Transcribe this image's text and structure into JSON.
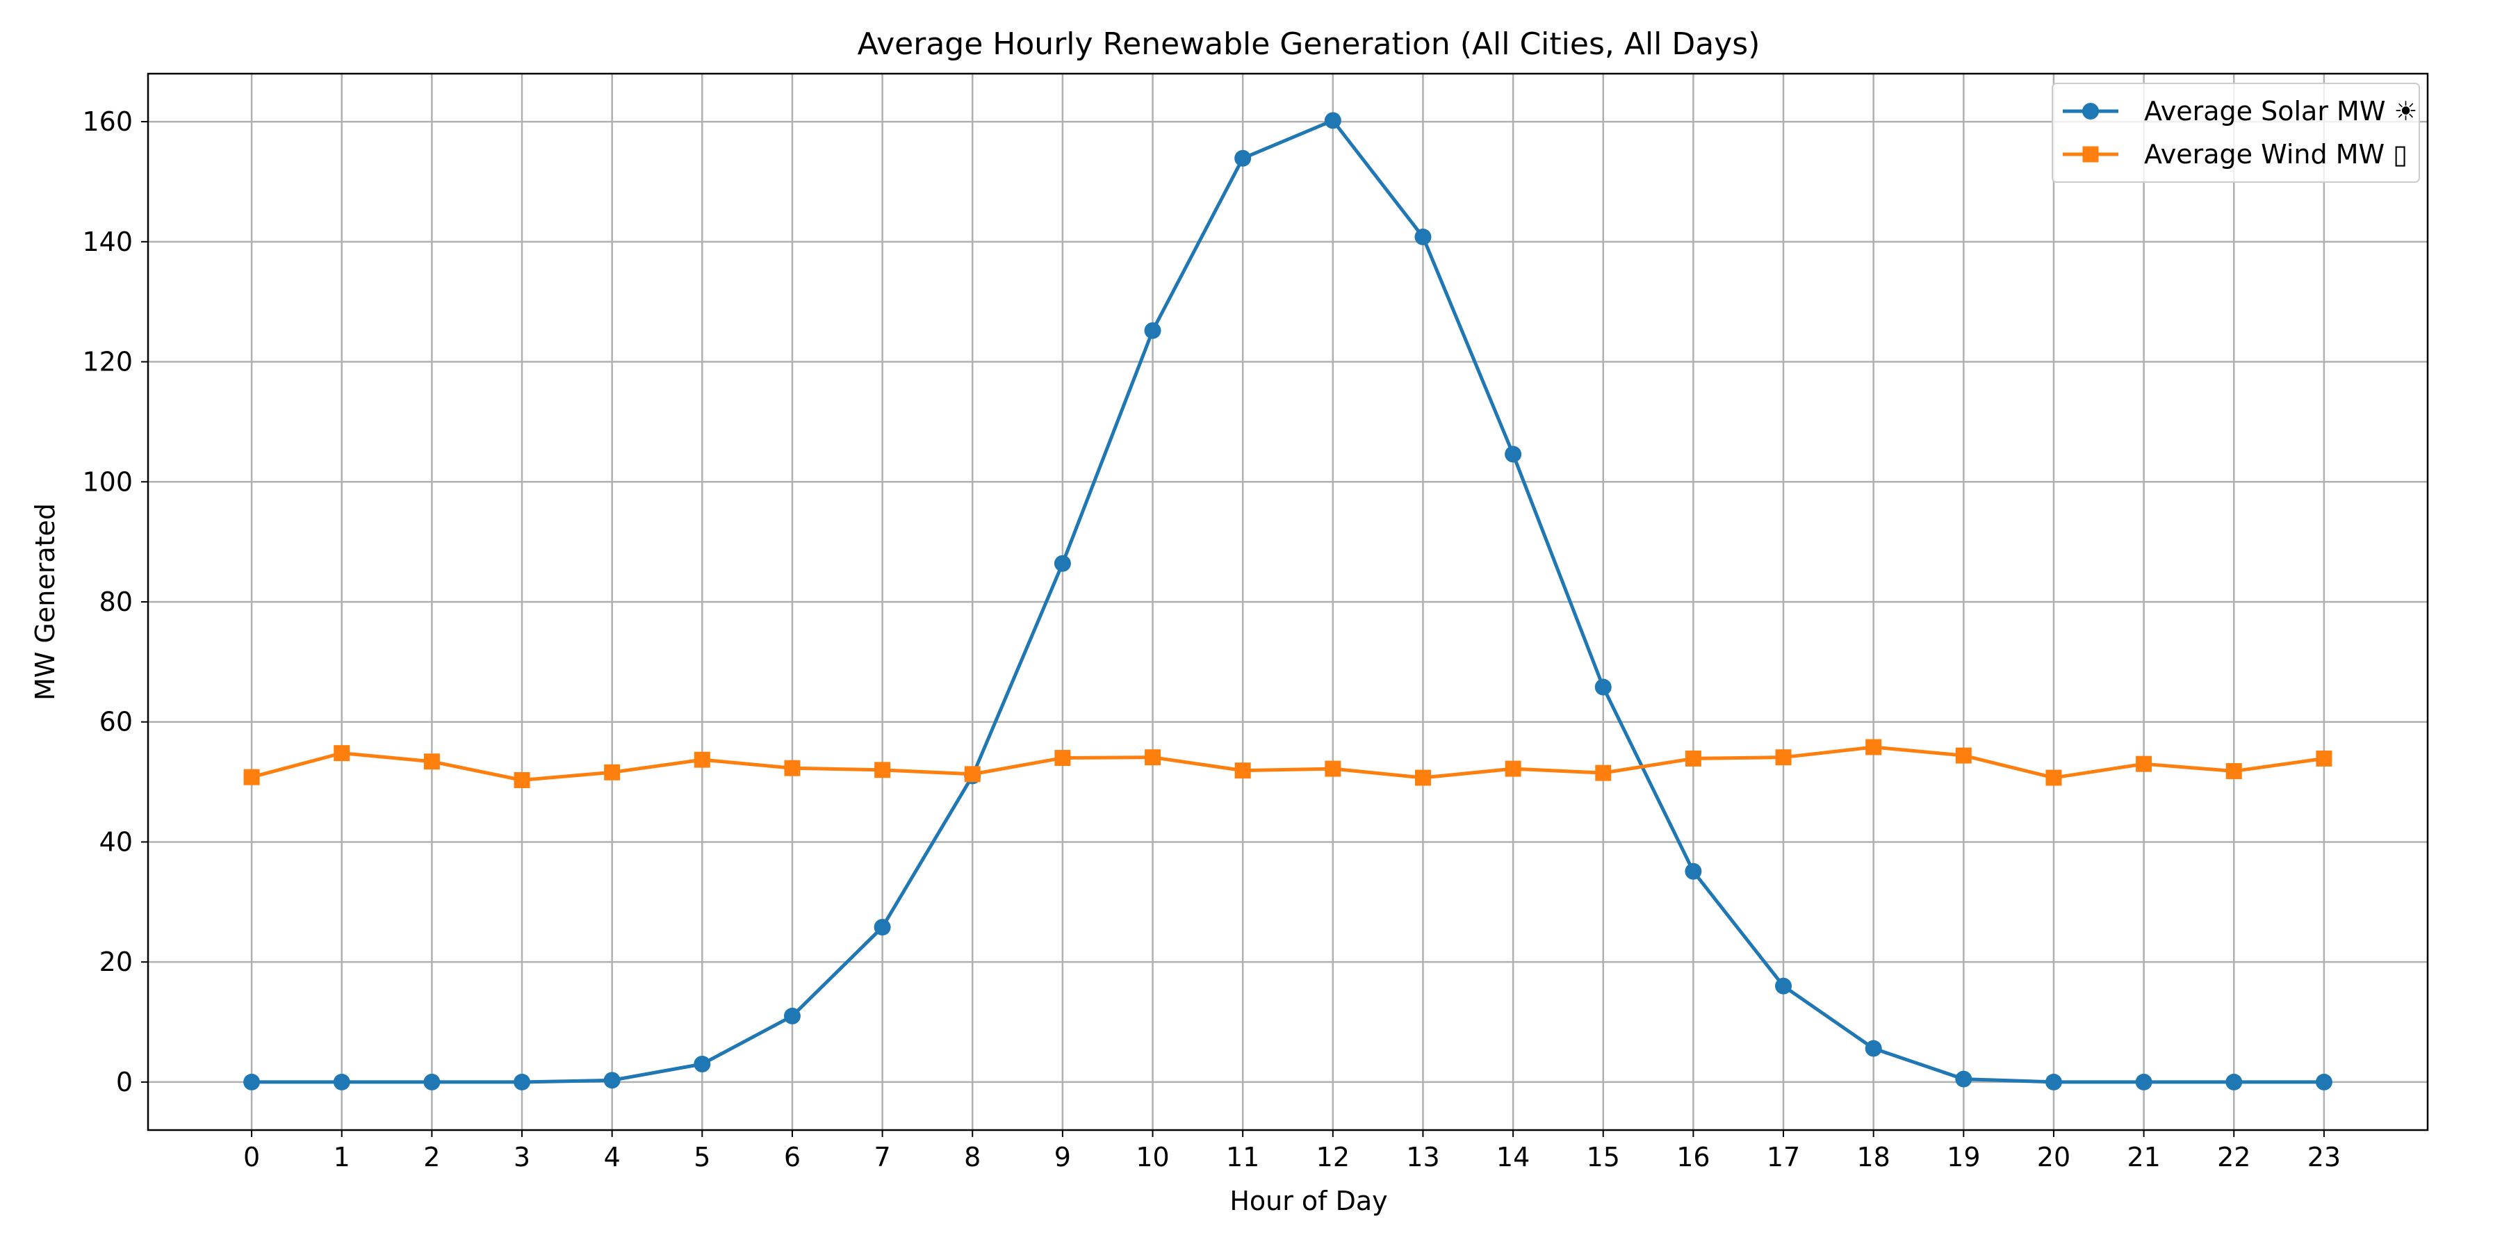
{
  "chart_data": {
    "type": "line",
    "title": "Average Hourly Renewable Generation (All Cities, All Days)",
    "xlabel": "Hour of Day",
    "ylabel": "MW Generated",
    "x": [
      0,
      1,
      2,
      3,
      4,
      5,
      6,
      7,
      8,
      9,
      10,
      11,
      12,
      13,
      14,
      15,
      16,
      17,
      18,
      19,
      20,
      21,
      22,
      23
    ],
    "x_ticks": [
      "0",
      "1",
      "2",
      "3",
      "4",
      "5",
      "6",
      "7",
      "8",
      "9",
      "10",
      "11",
      "12",
      "13",
      "14",
      "15",
      "16",
      "17",
      "18",
      "19",
      "20",
      "21",
      "22",
      "23"
    ],
    "y_ticks": [
      0,
      20,
      40,
      60,
      80,
      100,
      120,
      140,
      160
    ],
    "xlim": [
      -1.15,
      24.15
    ],
    "ylim": [
      -8,
      168
    ],
    "grid": true,
    "legend_position": "top-right",
    "series": [
      {
        "name": "Average Solar MW ☀",
        "color": "#1f77b4",
        "marker": "circle",
        "values": [
          0,
          0,
          0,
          0,
          0.3,
          3,
          11,
          25.8,
          51,
          86.4,
          125.2,
          153.9,
          160.2,
          140.8,
          104.6,
          65.8,
          35.1,
          16,
          5.6,
          0.5,
          0,
          0,
          0,
          0
        ]
      },
      {
        "name": "Average Wind MW ▯",
        "color": "#ff7f0e",
        "marker": "square",
        "values": [
          50.8,
          54.8,
          53.4,
          50.3,
          51.6,
          53.7,
          52.3,
          52,
          51.3,
          54,
          54.1,
          51.9,
          52.2,
          50.7,
          52.2,
          51.5,
          53.9,
          54.1,
          55.8,
          54.4,
          50.7,
          53,
          51.8,
          53.9
        ]
      }
    ]
  }
}
